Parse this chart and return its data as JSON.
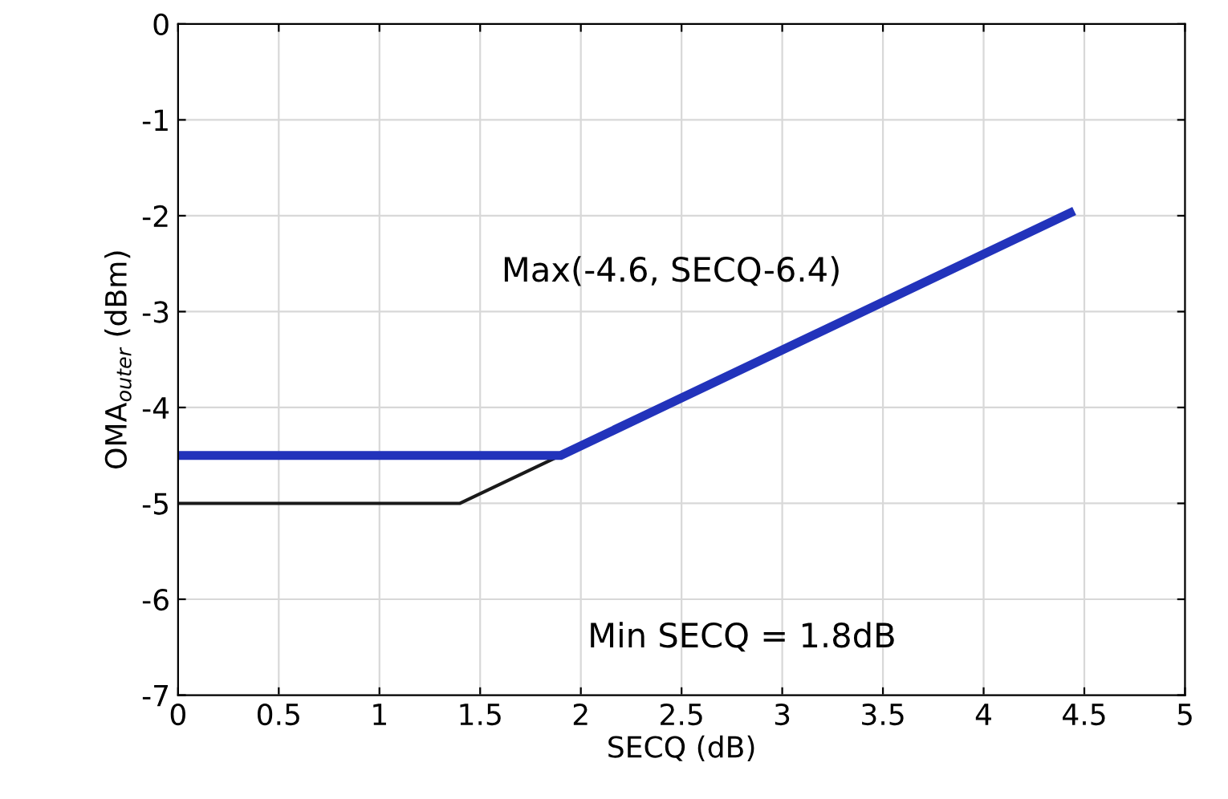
{
  "chart_data": {
    "type": "line",
    "xlabel": "SECQ (dB)",
    "ylabel": "OMA$_{outer}$ (dBm)",
    "xlim": [
      0,
      5
    ],
    "xticks": [
      0,
      0.5,
      1,
      1.5,
      2,
      2.5,
      3,
      3.5,
      4,
      4.5,
      5
    ],
    "ylim": [
      -7,
      0
    ],
    "yticks": [
      -7,
      -6,
      -5,
      -4,
      -3,
      -2,
      -1,
      0
    ],
    "grid": true,
    "series": [
      {
        "color": "#1a1a1a",
        "x": [
          0,
          1.4,
          1.9
        ],
        "values": [
          -5,
          -5,
          -4.5
        ]
      },
      {
        "color": "#2233bb",
        "x": [
          0,
          1.9,
          4.45
        ],
        "values": [
          -4.5,
          -4.5,
          -1.95
        ]
      }
    ],
    "annotations": [
      "Max(-4.6, SECQ-6.4)",
      "Min SECQ = 1.8dB"
    ]
  }
}
